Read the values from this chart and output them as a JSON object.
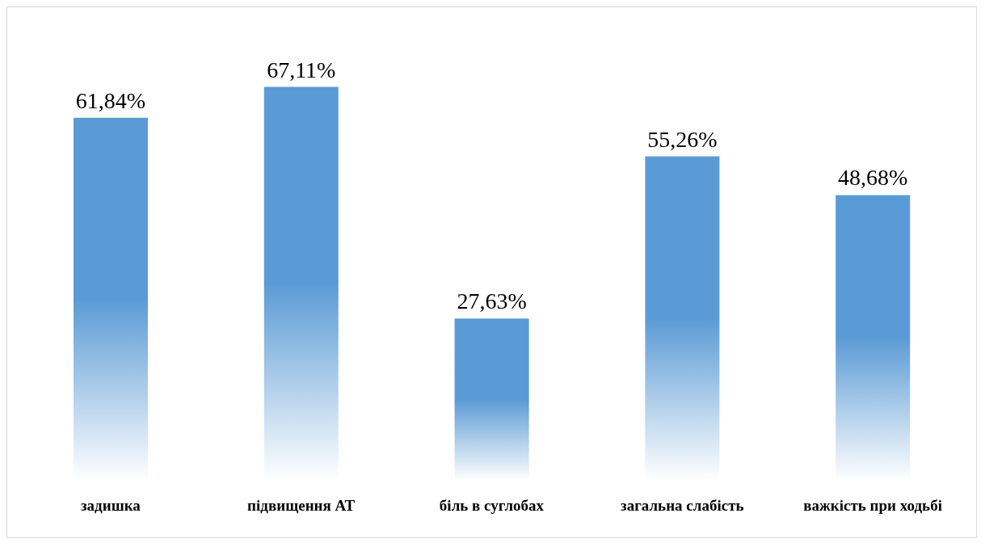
{
  "chart_data": {
    "type": "bar",
    "categories": [
      "задишка",
      "підвищення АТ",
      "біль в суглобах",
      "загальна слабість",
      "важкість при ходьбі"
    ],
    "values": [
      61.84,
      67.11,
      27.63,
      55.26,
      48.68
    ],
    "value_labels": [
      "61,84%",
      "67,11%",
      "27,63%",
      "55,26%",
      "48,68%"
    ],
    "color": "#5b9bd5",
    "grid": false,
    "legend": false
  }
}
